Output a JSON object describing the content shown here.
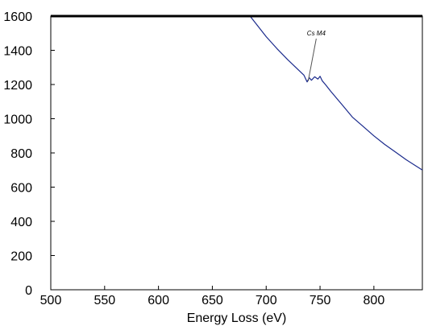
{
  "chart_data": {
    "type": "line",
    "title": "",
    "xlabel": "Energy Loss (eV)",
    "ylabel": "",
    "xlim": [
      500,
      845
    ],
    "ylim": [
      0,
      1600
    ],
    "x_ticks": [
      500,
      550,
      600,
      650,
      700,
      750,
      800
    ],
    "y_ticks": [
      0,
      200,
      400,
      600,
      800,
      1000,
      1200,
      1400,
      1600
    ],
    "grid": false,
    "legend": "none",
    "series": [
      {
        "color": "#1a2a8c",
        "x": [
          685,
          690,
          700,
          710,
          720,
          730,
          735,
          738,
          740,
          742,
          745,
          748,
          750,
          752,
          755,
          760,
          770,
          780,
          790,
          800,
          810,
          820,
          830,
          840,
          845
        ],
        "y": [
          1600,
          1560,
          1480,
          1410,
          1345,
          1285,
          1255,
          1215,
          1240,
          1225,
          1245,
          1232,
          1248,
          1222,
          1200,
          1160,
          1085,
          1010,
          955,
          900,
          850,
          805,
          760,
          720,
          700
        ]
      },
      {
        "color": "#000000",
        "x": [
          500,
          845
        ],
        "y": [
          1600,
          1600
        ]
      }
    ],
    "annotations": [
      {
        "text": "Cs M4",
        "x": 739,
        "y": 1220
      }
    ]
  }
}
